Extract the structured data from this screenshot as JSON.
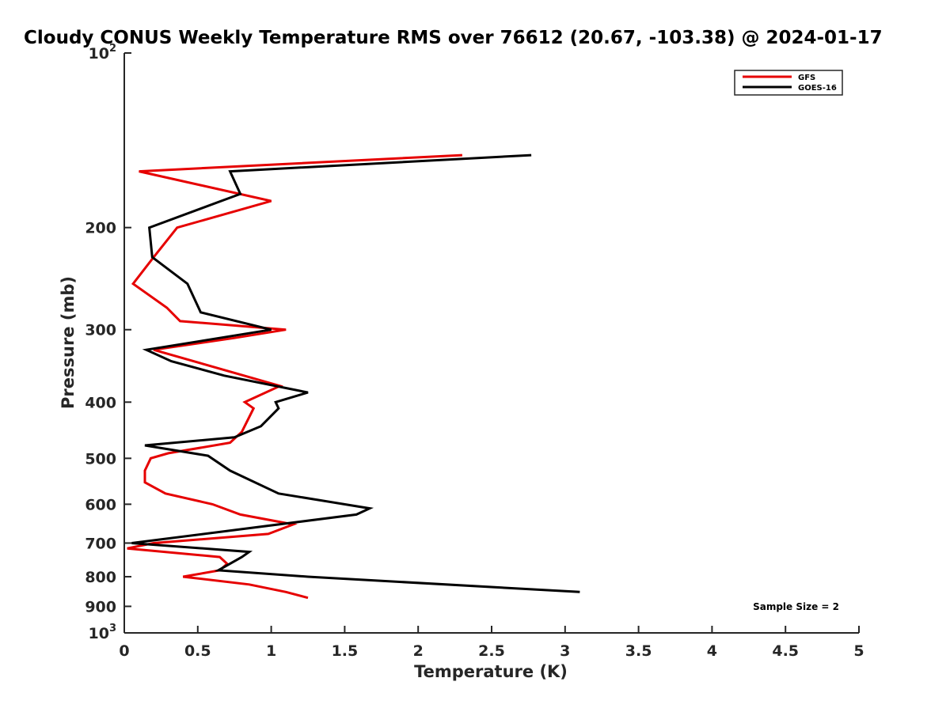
{
  "chart_data": {
    "type": "line",
    "title": "Cloudy CONUS Weekly Temperature RMS over 76612 (20.67, -103.38) @ 2024-01-17",
    "xlabel": "Temperature (K)",
    "ylabel": "Pressure (mb)",
    "xlim": [
      0,
      5
    ],
    "ylim": [
      100,
      1000
    ],
    "y_scale": "log",
    "y_reversed": true,
    "grid": false,
    "legend_position": "top-right",
    "x_ticks": [
      "0",
      "0.5",
      "1",
      "1.5",
      "2",
      "2.5",
      "3",
      "3.5",
      "4",
      "4.5",
      "5"
    ],
    "y_ticks": [
      {
        "value": 100,
        "label": "10",
        "exp": "2"
      },
      {
        "value": 200,
        "label": "200"
      },
      {
        "value": 300,
        "label": "300"
      },
      {
        "value": 400,
        "label": "400"
      },
      {
        "value": 500,
        "label": "500"
      },
      {
        "value": 600,
        "label": "600"
      },
      {
        "value": 700,
        "label": "700"
      },
      {
        "value": 800,
        "label": "800"
      },
      {
        "value": 900,
        "label": "900"
      },
      {
        "value": 1000,
        "label": "10",
        "exp": "3"
      }
    ],
    "annotation": "Sample Size = 2",
    "series": [
      {
        "name": "GFS",
        "color": "#e60000",
        "points": [
          {
            "x": 2.3,
            "p": 150
          },
          {
            "x": 0.1,
            "p": 160
          },
          {
            "x": 1.0,
            "p": 180
          },
          {
            "x": 0.36,
            "p": 200
          },
          {
            "x": 0.2,
            "p": 225
          },
          {
            "x": 0.06,
            "p": 250
          },
          {
            "x": 0.29,
            "p": 275
          },
          {
            "x": 0.38,
            "p": 290
          },
          {
            "x": 1.1,
            "p": 300
          },
          {
            "x": 0.75,
            "p": 310
          },
          {
            "x": 0.2,
            "p": 325
          },
          {
            "x": 1.06,
            "p": 375
          },
          {
            "x": 0.82,
            "p": 400
          },
          {
            "x": 0.88,
            "p": 410
          },
          {
            "x": 0.8,
            "p": 450
          },
          {
            "x": 0.72,
            "p": 470
          },
          {
            "x": 0.3,
            "p": 490
          },
          {
            "x": 0.18,
            "p": 500
          },
          {
            "x": 0.14,
            "p": 525
          },
          {
            "x": 0.14,
            "p": 550
          },
          {
            "x": 0.28,
            "p": 575
          },
          {
            "x": 0.6,
            "p": 600
          },
          {
            "x": 0.79,
            "p": 625
          },
          {
            "x": 1.15,
            "p": 650
          },
          {
            "x": 0.98,
            "p": 675
          },
          {
            "x": 0.2,
            "p": 700
          },
          {
            "x": 0.02,
            "p": 715
          },
          {
            "x": 0.65,
            "p": 740
          },
          {
            "x": 0.7,
            "p": 760
          },
          {
            "x": 0.65,
            "p": 780
          },
          {
            "x": 0.4,
            "p": 800
          },
          {
            "x": 0.85,
            "p": 825
          },
          {
            "x": 1.1,
            "p": 850
          },
          {
            "x": 1.25,
            "p": 870
          }
        ]
      },
      {
        "name": "GOES-16",
        "color": "#000000",
        "points": [
          {
            "x": 2.77,
            "p": 150
          },
          {
            "x": 0.72,
            "p": 160
          },
          {
            "x": 0.79,
            "p": 175
          },
          {
            "x": 0.17,
            "p": 200
          },
          {
            "x": 0.19,
            "p": 225
          },
          {
            "x": 0.43,
            "p": 250
          },
          {
            "x": 0.52,
            "p": 280
          },
          {
            "x": 1.0,
            "p": 300
          },
          {
            "x": 0.15,
            "p": 325
          },
          {
            "x": 0.32,
            "p": 340
          },
          {
            "x": 0.68,
            "p": 360
          },
          {
            "x": 1.25,
            "p": 385
          },
          {
            "x": 1.03,
            "p": 400
          },
          {
            "x": 1.05,
            "p": 410
          },
          {
            "x": 0.93,
            "p": 440
          },
          {
            "x": 0.75,
            "p": 460
          },
          {
            "x": 0.14,
            "p": 475
          },
          {
            "x": 0.57,
            "p": 495
          },
          {
            "x": 0.72,
            "p": 525
          },
          {
            "x": 1.05,
            "p": 575
          },
          {
            "x": 1.67,
            "p": 610
          },
          {
            "x": 1.58,
            "p": 625
          },
          {
            "x": 0.05,
            "p": 700
          },
          {
            "x": 0.85,
            "p": 725
          },
          {
            "x": 0.8,
            "p": 740
          },
          {
            "x": 0.64,
            "p": 780
          },
          {
            "x": 1.25,
            "p": 800
          },
          {
            "x": 3.1,
            "p": 850
          }
        ]
      }
    ]
  }
}
